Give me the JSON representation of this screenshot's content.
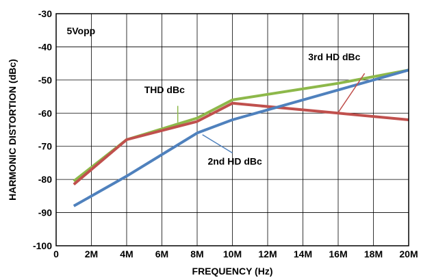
{
  "chart_data": {
    "type": "line",
    "xlabel": "FREQUENCY (Hz)",
    "ylabel": "HARMONIC DISTORTION (dBc)",
    "xlim": [
      0,
      20
    ],
    "ylim": [
      -100,
      -30
    ],
    "x_ticks": [
      0,
      2,
      4,
      6,
      8,
      10,
      12,
      14,
      16,
      18,
      20
    ],
    "x_tick_labels": [
      "0",
      "2M",
      "4M",
      "6M",
      "8M",
      "10M",
      "12M",
      "14M",
      "16M",
      "18M",
      "20M"
    ],
    "y_ticks": [
      -100,
      -90,
      -80,
      -70,
      -60,
      -50,
      -40,
      -30
    ],
    "y_tick_labels": [
      "-100",
      "-90",
      "-80",
      "-70",
      "-60",
      "-50",
      "-40",
      "-30"
    ],
    "grid": true,
    "condition_label": "5Vopp",
    "series": [
      {
        "name": "THD dBc",
        "color": "#8db84a",
        "points": [
          [
            1,
            -80.5
          ],
          [
            4,
            -68
          ],
          [
            8,
            -61.5
          ],
          [
            10,
            -56
          ],
          [
            16,
            -51
          ],
          [
            20,
            -47
          ]
        ]
      },
      {
        "name": "3rd HD dBc",
        "color": "#c0504d",
        "points": [
          [
            1,
            -81.5
          ],
          [
            4,
            -68
          ],
          [
            8,
            -62.5
          ],
          [
            10,
            -57
          ],
          [
            16,
            -60
          ],
          [
            20,
            -62
          ]
        ]
      },
      {
        "name": "2nd HD dBc",
        "color": "#4f81bd",
        "points": [
          [
            1,
            -88
          ],
          [
            4,
            -79
          ],
          [
            8,
            -66
          ],
          [
            10,
            -62
          ],
          [
            16,
            -53
          ],
          [
            20,
            -47
          ]
        ]
      }
    ]
  }
}
